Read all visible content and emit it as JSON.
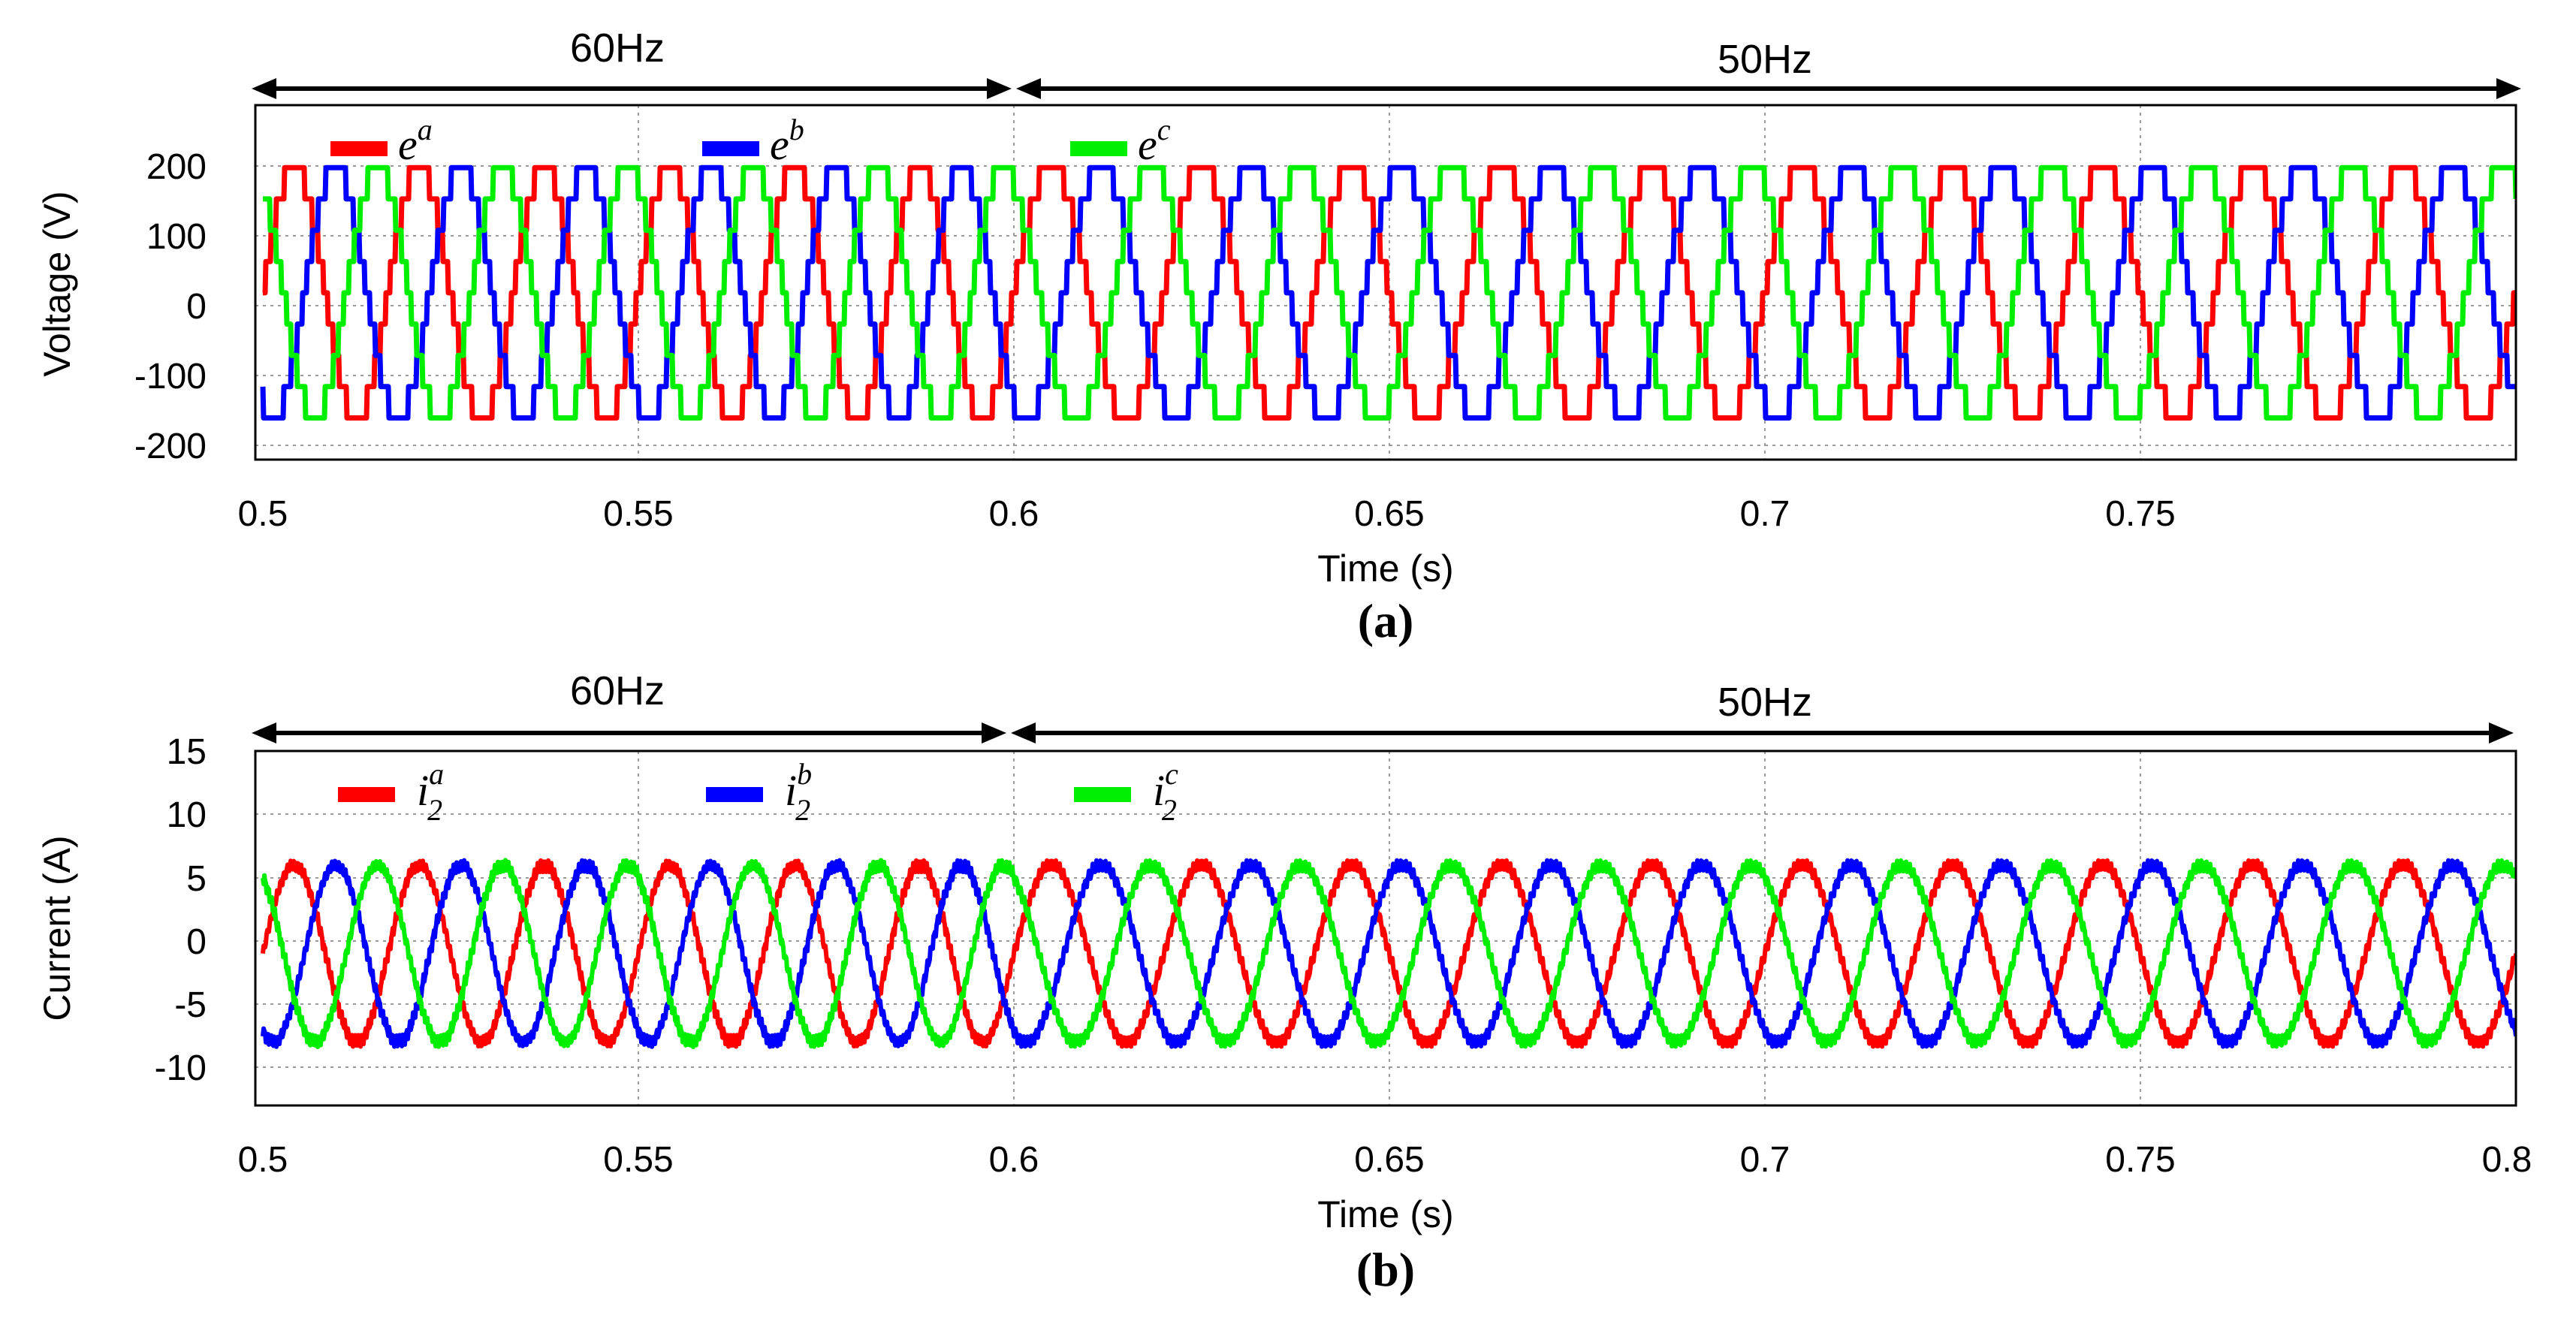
{
  "chart_data": [
    {
      "type": "line",
      "panel": "(a)",
      "xlabel": "Time (s)",
      "ylabel": "Voltage (V)",
      "xlim": [
        0.5,
        0.8
      ],
      "ylim": [
        -240,
        270
      ],
      "xticks": [
        0.5,
        0.55,
        0.6,
        0.65,
        0.7,
        0.75
      ],
      "xtick_labels": [
        "0.5",
        "0.55",
        "0.6",
        "0.65",
        "0.7",
        "0.75"
      ],
      "yticks": [
        -200,
        -100,
        0,
        100,
        200
      ],
      "ytick_labels": [
        "-200",
        "-100",
        "0",
        "100",
        "200"
      ],
      "grid": true,
      "legend_position": "top-left",
      "annotations": [
        {
          "text": "60Hz",
          "x_start": 0.5,
          "x_end": 0.6
        },
        {
          "text": "50Hz",
          "x_start": 0.6,
          "x_end": 0.8
        }
      ],
      "series": [
        {
          "name": "e",
          "superscript": "a",
          "color": "#ff0000",
          "amplitude": 180,
          "phase_deg": 0
        },
        {
          "name": "e",
          "superscript": "b",
          "color": "#0000ff",
          "amplitude": 180,
          "phase_deg": -120
        },
        {
          "name": "e",
          "superscript": "c",
          "color": "#00ee00",
          "amplitude": 180,
          "phase_deg": 120
        }
      ],
      "waveform": "stepped-sinusoid",
      "segments": [
        {
          "x_start": 0.5,
          "x_end": 0.6,
          "frequency_hz": 60,
          "amplitude": 180
        },
        {
          "x_start": 0.6,
          "x_end": 0.8,
          "frequency_hz": 50,
          "amplitude": 180
        }
      ]
    },
    {
      "type": "line",
      "panel": "(b)",
      "xlabel": "Time (s)",
      "ylabel": "Current (A)",
      "xlim": [
        0.5,
        0.8
      ],
      "ylim": [
        -12,
        16
      ],
      "xticks": [
        0.5,
        0.55,
        0.6,
        0.65,
        0.7,
        0.75,
        0.8
      ],
      "xtick_labels": [
        "0.5",
        "0.55",
        "0.6",
        "0.65",
        "0.7",
        "0.75",
        "0.8"
      ],
      "yticks": [
        -10,
        -5,
        0,
        5,
        10,
        15
      ],
      "ytick_labels": [
        "-10",
        "-5",
        "0",
        "5",
        "10",
        "15"
      ],
      "grid": true,
      "legend_position": "top-left",
      "annotations": [
        {
          "text": "60Hz",
          "x_start": 0.5,
          "x_end": 0.6
        },
        {
          "text": "50Hz",
          "x_start": 0.6,
          "x_end": 0.8
        }
      ],
      "series": [
        {
          "name": "i",
          "subscript": "2",
          "superscript": "a",
          "color": "#ff0000",
          "amplitude": 7,
          "phase_deg": 0
        },
        {
          "name": "i",
          "subscript": "2",
          "superscript": "b",
          "color": "#0000ff",
          "amplitude": 7,
          "phase_deg": -120
        },
        {
          "name": "i",
          "subscript": "2",
          "superscript": "c",
          "color": "#00ee00",
          "amplitude": 7,
          "phase_deg": 120
        }
      ],
      "waveform": "sinusoid-with-ripple",
      "segments": [
        {
          "x_start": 0.5,
          "x_end": 0.6,
          "frequency_hz": 60,
          "amplitude": 7
        },
        {
          "x_start": 0.6,
          "x_end": 0.8,
          "frequency_hz": 50,
          "amplitude": 7
        }
      ]
    }
  ]
}
